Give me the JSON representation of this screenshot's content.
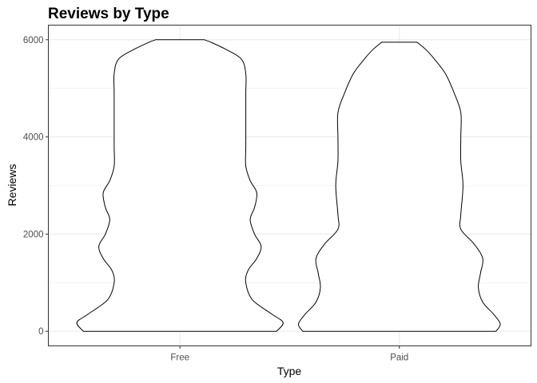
{
  "chart_data": {
    "type": "violin",
    "title": "Reviews by Type",
    "xlabel": "Type",
    "ylabel": "Reviews",
    "categories": [
      "Free",
      "Paid"
    ],
    "ylim": [
      -300,
      6300
    ],
    "yticks": [
      0,
      2000,
      4000,
      6000
    ],
    "ytick_labels": [
      "0",
      "2000",
      "4000",
      "6000"
    ],
    "grid": true,
    "theme": "bw",
    "outline_color": "#000000",
    "fill_color": "#ffffff",
    "violins": [
      {
        "category": "Free",
        "density_profile": [
          {
            "y": 0,
            "half_width": 0.44
          },
          {
            "y": 180,
            "half_width": 0.47
          },
          {
            "y": 350,
            "half_width": 0.42
          },
          {
            "y": 650,
            "half_width": 0.33
          },
          {
            "y": 1000,
            "half_width": 0.3
          },
          {
            "y": 1250,
            "half_width": 0.31
          },
          {
            "y": 1500,
            "half_width": 0.35
          },
          {
            "y": 1750,
            "half_width": 0.37
          },
          {
            "y": 2000,
            "half_width": 0.34
          },
          {
            "y": 2300,
            "half_width": 0.32
          },
          {
            "y": 2550,
            "half_width": 0.34
          },
          {
            "y": 2850,
            "half_width": 0.35
          },
          {
            "y": 3100,
            "half_width": 0.32
          },
          {
            "y": 3400,
            "half_width": 0.3
          },
          {
            "y": 3800,
            "half_width": 0.3
          },
          {
            "y": 4300,
            "half_width": 0.3
          },
          {
            "y": 4900,
            "half_width": 0.3
          },
          {
            "y": 5300,
            "half_width": 0.3
          },
          {
            "y": 5600,
            "half_width": 0.28
          },
          {
            "y": 5800,
            "half_width": 0.21
          },
          {
            "y": 5950,
            "half_width": 0.14
          },
          {
            "y": 6000,
            "half_width": 0.11
          }
        ]
      },
      {
        "category": "Paid",
        "density_profile": [
          {
            "y": 0,
            "half_width": 0.44
          },
          {
            "y": 150,
            "half_width": 0.46
          },
          {
            "y": 350,
            "half_width": 0.43
          },
          {
            "y": 600,
            "half_width": 0.38
          },
          {
            "y": 900,
            "half_width": 0.36
          },
          {
            "y": 1200,
            "half_width": 0.37
          },
          {
            "y": 1500,
            "half_width": 0.38
          },
          {
            "y": 1800,
            "half_width": 0.34
          },
          {
            "y": 2100,
            "half_width": 0.28
          },
          {
            "y": 2400,
            "half_width": 0.28
          },
          {
            "y": 3000,
            "half_width": 0.29
          },
          {
            "y": 3500,
            "half_width": 0.28
          },
          {
            "y": 4000,
            "half_width": 0.28
          },
          {
            "y": 4500,
            "half_width": 0.28
          },
          {
            "y": 4900,
            "half_width": 0.25
          },
          {
            "y": 5300,
            "half_width": 0.21
          },
          {
            "y": 5600,
            "half_width": 0.16
          },
          {
            "y": 5800,
            "half_width": 0.12
          },
          {
            "y": 5950,
            "half_width": 0.08
          }
        ]
      }
    ]
  }
}
